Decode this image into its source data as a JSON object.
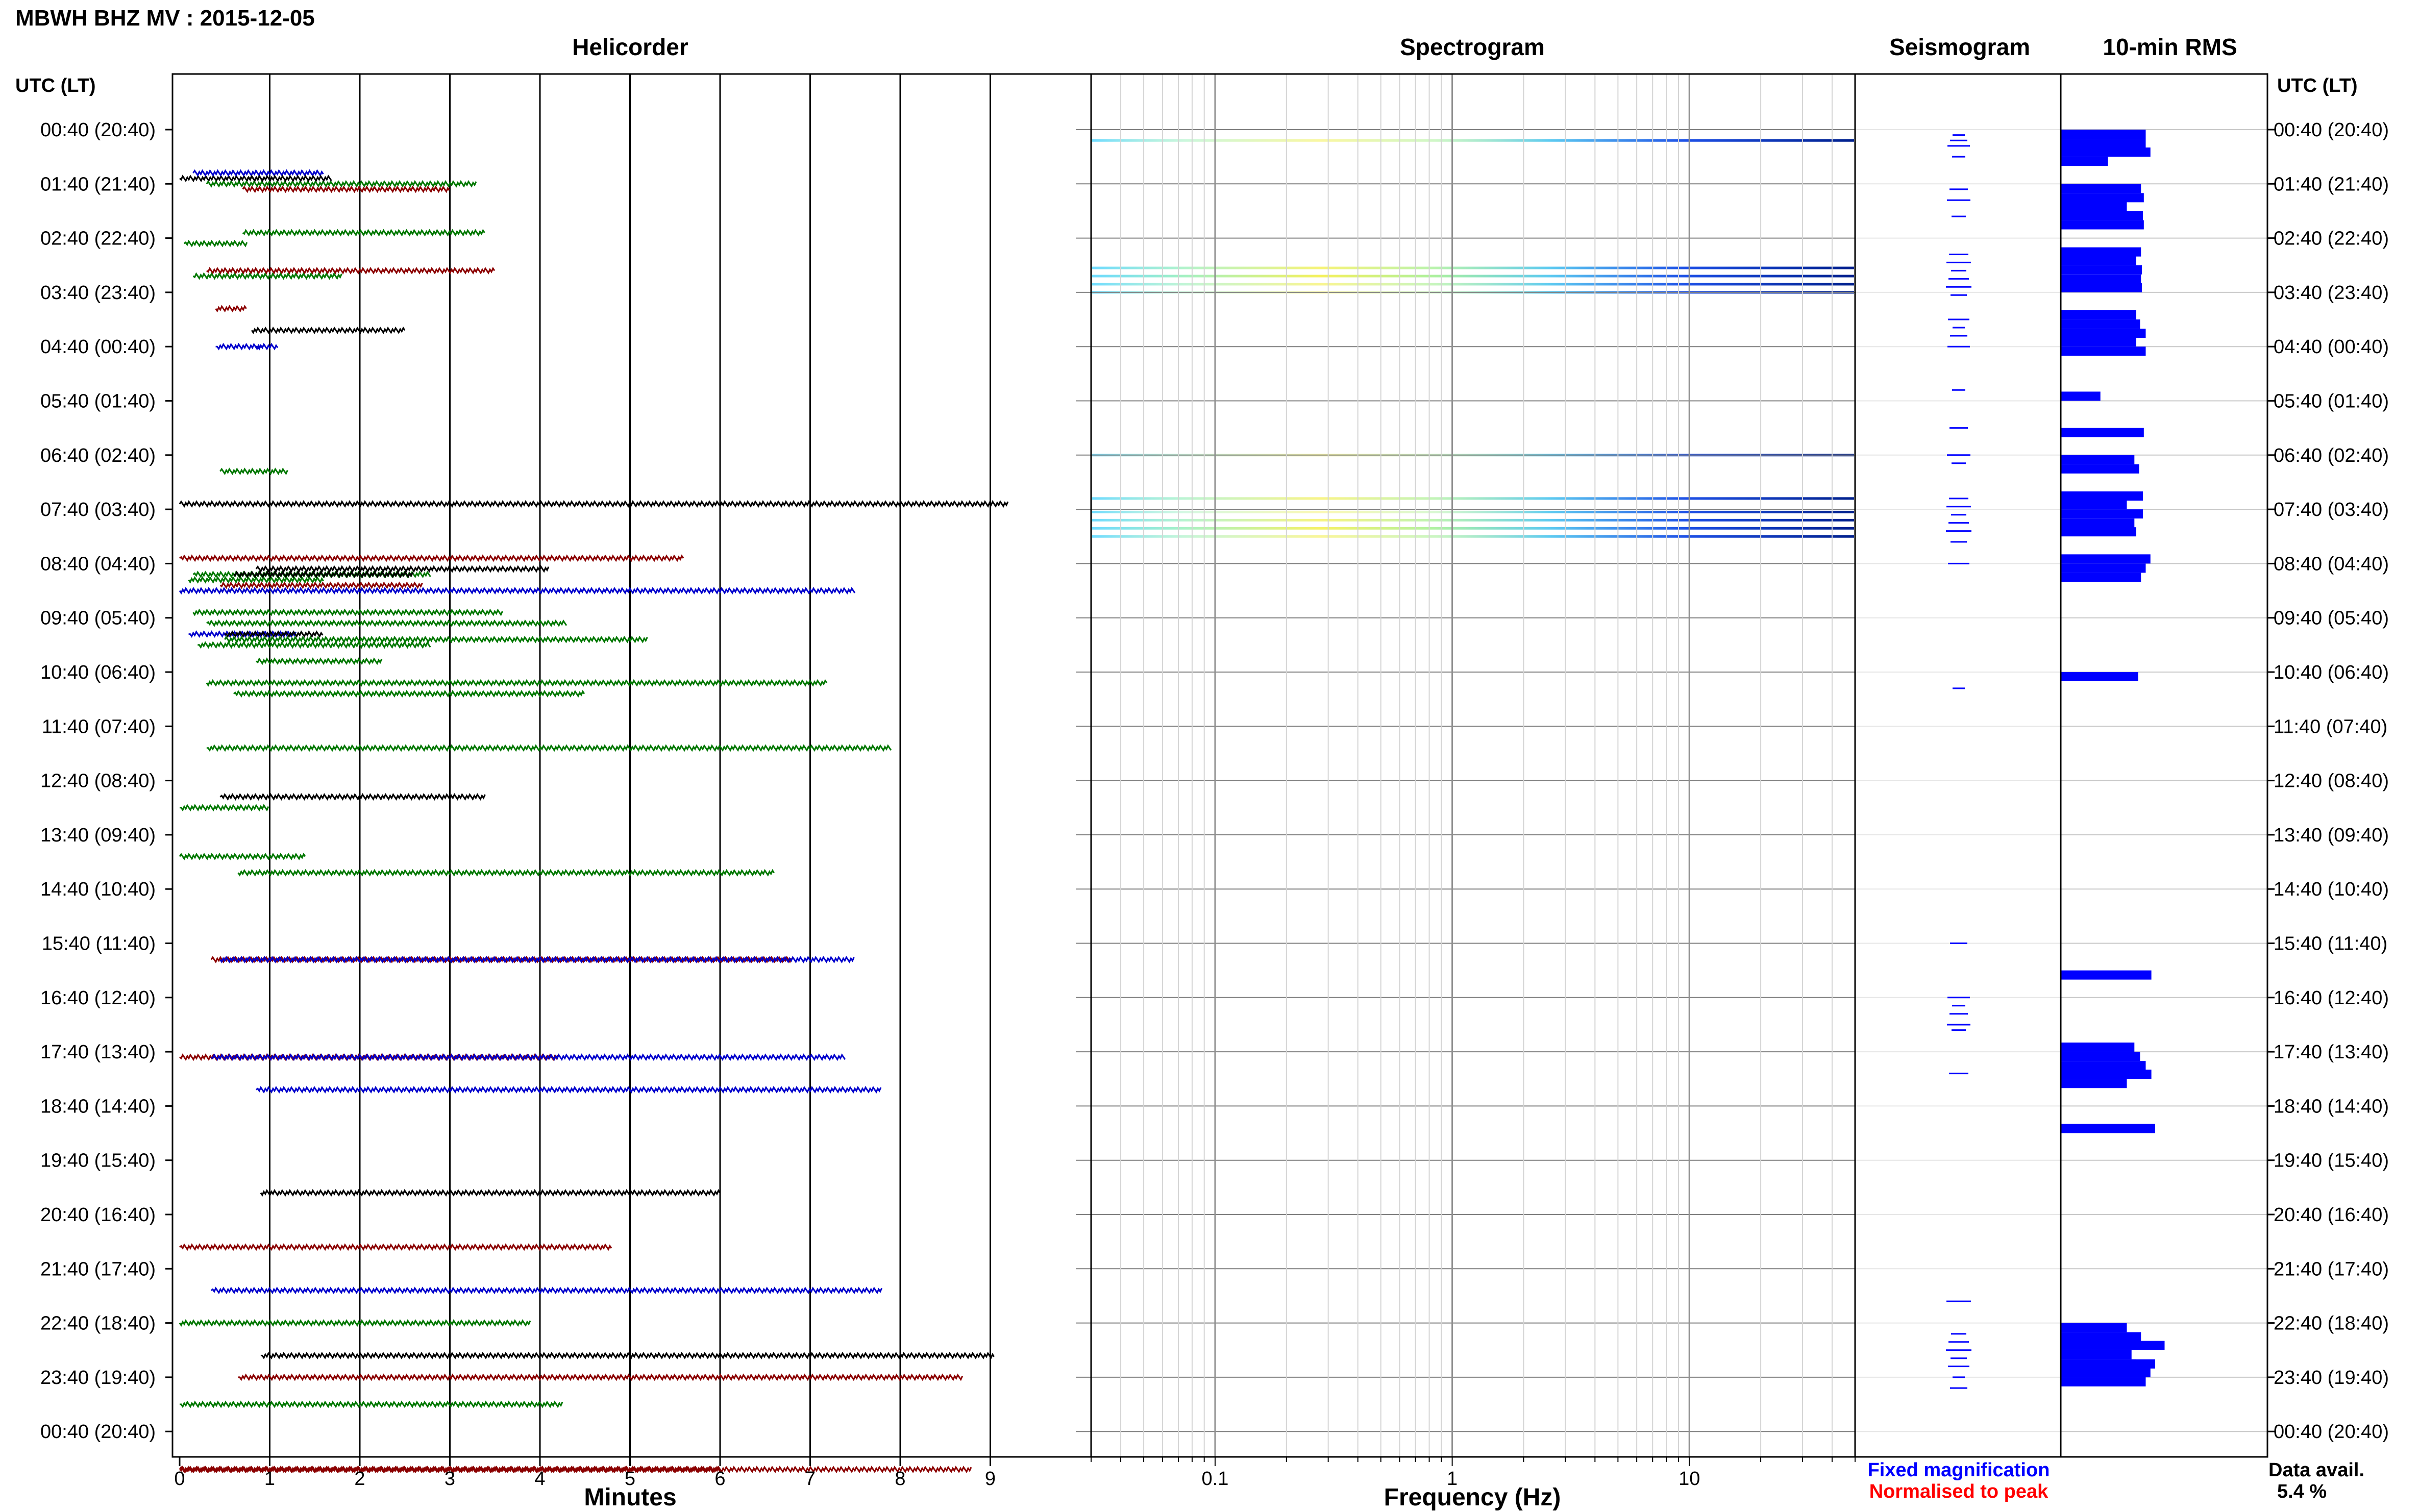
{
  "chart_data": {
    "type": "helicorder",
    "title": "MBWH BHZ MV : 2015-12-05",
    "panel_titles": [
      "Helicorder",
      "Spectrogram",
      "Seismogram",
      "10-min RMS"
    ],
    "left_axis_title": "UTC (LT)",
    "right_axis_title": "UTC (LT)",
    "time_labels": [
      "00:40 (20:40)",
      "01:40 (21:40)",
      "02:40 (22:40)",
      "03:40 (23:40)",
      "04:40 (00:40)",
      "05:40 (01:40)",
      "06:40 (02:40)",
      "07:40 (03:40)",
      "08:40 (04:40)",
      "09:40 (05:40)",
      "10:40 (06:40)",
      "11:40 (07:40)",
      "12:40 (08:40)",
      "13:40 (09:40)",
      "14:40 (10:40)",
      "15:40 (11:40)",
      "16:40 (12:40)",
      "17:40 (13:40)",
      "18:40 (14:40)",
      "19:40 (15:40)",
      "20:40 (16:40)",
      "21:40 (17:40)",
      "22:40 (18:40)",
      "23:40 (19:40)",
      "00:40 (20:40)"
    ],
    "helicorder": {
      "xlabel": "Minutes",
      "xticks": [
        "0",
        "1",
        "2",
        "3",
        "4",
        "5",
        "6",
        "7",
        "8",
        "9"
      ],
      "xlim": [
        0,
        10.1
      ],
      "colors": [
        "#000000",
        "#8b0000",
        "#0000cc",
        "#007700"
      ],
      "segments": [
        [
          0.0,
          9.2,
          6.9,
          0
        ],
        [
          0.0,
          0.95,
          0.9,
          0
        ],
        [
          0.0,
          5.6,
          7.9,
          1
        ],
        [
          0.0,
          7.5,
          8.5,
          2
        ],
        [
          0.0,
          1.0,
          12.5,
          3
        ],
        [
          0.0,
          1.4,
          13.4,
          3
        ],
        [
          0.0,
          4.2,
          17.1,
          1
        ],
        [
          0.0,
          4.8,
          20.6,
          1
        ],
        [
          0.0,
          3.9,
          22.0,
          3
        ],
        [
          0.0,
          4.25,
          23.5,
          3
        ],
        [
          0.0,
          6.0,
          24.7,
          1
        ],
        [
          0.0,
          8.8,
          24.7,
          1
        ],
        [
          0.05,
          0.75,
          2.1,
          3
        ],
        [
          0.1,
          1.6,
          8.3,
          3
        ],
        [
          0.1,
          1.3,
          9.3,
          2
        ],
        [
          0.15,
          1.6,
          0.8,
          2
        ],
        [
          0.15,
          1.8,
          2.7,
          3
        ],
        [
          0.15,
          2.8,
          8.2,
          3
        ],
        [
          0.15,
          3.6,
          8.9,
          3
        ],
        [
          0.2,
          2.8,
          9.5,
          3
        ],
        [
          0.3,
          3.3,
          1.0,
          3
        ],
        [
          0.3,
          3.5,
          2.6,
          1
        ],
        [
          0.3,
          4.3,
          9.1,
          3
        ],
        [
          0.3,
          7.2,
          10.2,
          3
        ],
        [
          0.3,
          7.9,
          11.4,
          3
        ],
        [
          0.35,
          6.8,
          15.3,
          1
        ],
        [
          0.35,
          7.4,
          17.1,
          2
        ],
        [
          0.35,
          7.8,
          21.4,
          2
        ],
        [
          0.4,
          0.75,
          3.3,
          1
        ],
        [
          0.4,
          0.9,
          4.0,
          2
        ],
        [
          0.45,
          1.2,
          6.3,
          3
        ],
        [
          0.45,
          2.7,
          8.4,
          1
        ],
        [
          0.45,
          3.4,
          12.3,
          0
        ],
        [
          0.45,
          7.5,
          15.3,
          2
        ],
        [
          0.5,
          1.6,
          9.3,
          0
        ],
        [
          0.5,
          5.2,
          9.4,
          3
        ],
        [
          0.6,
          2.6,
          8.2,
          0
        ],
        [
          0.6,
          4.5,
          10.4,
          3
        ],
        [
          0.65,
          6.6,
          13.7,
          3
        ],
        [
          0.65,
          8.7,
          23.0,
          1
        ],
        [
          0.7,
          3.0,
          1.1,
          1
        ],
        [
          0.7,
          3.4,
          1.9,
          3
        ],
        [
          0.75,
          1.7,
          0.9,
          0
        ],
        [
          0.8,
          2.5,
          3.7,
          0
        ],
        [
          0.85,
          1.1,
          4.0,
          2
        ],
        [
          0.85,
          4.1,
          8.1,
          0
        ],
        [
          0.85,
          2.25,
          9.8,
          3
        ],
        [
          0.85,
          7.8,
          17.7,
          2
        ],
        [
          0.9,
          6.0,
          19.6,
          0
        ],
        [
          0.9,
          9.05,
          22.6,
          0
        ]
      ]
    },
    "spectrogram": {
      "xlabel": "Frequency (Hz)",
      "xticks": [
        "0.1",
        "1",
        "10"
      ],
      "xlim": [
        0.03,
        50
      ],
      "bands": [
        {
          "row": 0.2,
          "intensity": 0.55
        },
        {
          "row": 2.55,
          "intensity": 0.8
        },
        {
          "row": 2.7,
          "intensity": 0.95
        },
        {
          "row": 2.85,
          "intensity": 0.65
        },
        {
          "row": 3.0,
          "intensity": 0.45
        },
        {
          "row": 6.0,
          "intensity": 0.55
        },
        {
          "row": 6.8,
          "intensity": 0.7
        },
        {
          "row": 7.05,
          "intensity": 0.45
        },
        {
          "row": 7.2,
          "intensity": 0.75
        },
        {
          "row": 7.35,
          "intensity": 0.9
        },
        {
          "row": 7.5,
          "intensity": 0.6
        }
      ]
    },
    "seismogram": {
      "rows": [
        0.1,
        0.2,
        0.3,
        0.5,
        1.1,
        1.3,
        1.6,
        2.3,
        2.45,
        2.6,
        2.75,
        2.9,
        3.05,
        3.5,
        3.65,
        3.8,
        4.0,
        4.8,
        5.5,
        6.0,
        6.15,
        6.8,
        6.95,
        7.1,
        7.25,
        7.4,
        7.6,
        8.0,
        10.3,
        15.0,
        16.0,
        16.15,
        16.3,
        16.5,
        16.6,
        17.4,
        21.6,
        22.2,
        22.35,
        22.5,
        22.65,
        22.8,
        23.0,
        23.2
      ]
    },
    "rms": {
      "rows": [
        {
          "row": 0.0,
          "value": 0.9
        },
        {
          "row": 0.17,
          "value": 0.9
        },
        {
          "row": 0.33,
          "value": 0.95
        },
        {
          "row": 0.5,
          "value": 0.5
        },
        {
          "row": 1.0,
          "value": 0.85
        },
        {
          "row": 1.17,
          "value": 0.88
        },
        {
          "row": 1.33,
          "value": 0.7
        },
        {
          "row": 1.5,
          "value": 0.87
        },
        {
          "row": 1.67,
          "value": 0.88
        },
        {
          "row": 2.17,
          "value": 0.85
        },
        {
          "row": 2.33,
          "value": 0.8
        },
        {
          "row": 2.5,
          "value": 0.86
        },
        {
          "row": 2.67,
          "value": 0.85
        },
        {
          "row": 2.83,
          "value": 0.86
        },
        {
          "row": 3.33,
          "value": 0.8
        },
        {
          "row": 3.5,
          "value": 0.84
        },
        {
          "row": 3.67,
          "value": 0.9
        },
        {
          "row": 3.83,
          "value": 0.8
        },
        {
          "row": 4.0,
          "value": 0.9
        },
        {
          "row": 4.83,
          "value": 0.42
        },
        {
          "row": 5.5,
          "value": 0.88
        },
        {
          "row": 6.0,
          "value": 0.78
        },
        {
          "row": 6.17,
          "value": 0.83
        },
        {
          "row": 6.67,
          "value": 0.87
        },
        {
          "row": 6.83,
          "value": 0.7
        },
        {
          "row": 7.0,
          "value": 0.87
        },
        {
          "row": 7.17,
          "value": 0.78
        },
        {
          "row": 7.33,
          "value": 0.8
        },
        {
          "row": 7.83,
          "value": 0.95
        },
        {
          "row": 8.0,
          "value": 0.9
        },
        {
          "row": 8.17,
          "value": 0.85
        },
        {
          "row": 10.0,
          "value": 0.82
        },
        {
          "row": 15.5,
          "value": 0.96
        },
        {
          "row": 16.83,
          "value": 0.78
        },
        {
          "row": 17.0,
          "value": 0.84
        },
        {
          "row": 17.17,
          "value": 0.9
        },
        {
          "row": 17.33,
          "value": 0.96
        },
        {
          "row": 17.5,
          "value": 0.7
        },
        {
          "row": 18.33,
          "value": 1.0
        },
        {
          "row": 22.67,
          "value": 0.8
        },
        {
          "row": 22.0,
          "value": 0.7
        },
        {
          "row": 22.17,
          "value": 0.85
        },
        {
          "row": 22.33,
          "value": 1.1
        },
        {
          "row": 22.5,
          "value": 0.75
        },
        {
          "row": 22.67,
          "value": 1.0
        },
        {
          "row": 22.83,
          "value": 0.95
        },
        {
          "row": 23.0,
          "value": 0.9
        }
      ]
    },
    "legend": {
      "fixed": "Fixed magnification",
      "fixed_color": "#0000ff",
      "normalised": "Normalised to peak",
      "normalised_color": "#ff0000"
    },
    "availability_label": "Data avail.",
    "availability_value": "5.4 %",
    "trace_color": "#0000ff",
    "grid": true
  }
}
